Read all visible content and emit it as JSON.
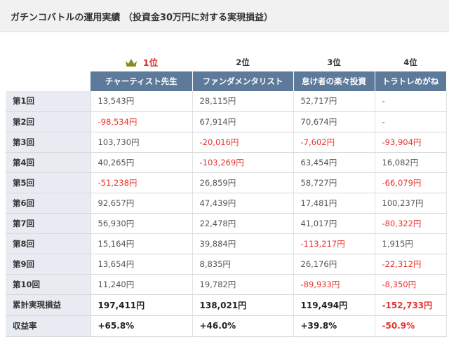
{
  "title": "ガチンコバトルの運用実績 （投資金30万円に対する実現損益）",
  "ranks": [
    "1位",
    "2位",
    "3位",
    "4位"
  ],
  "traders": [
    "チャーティスト先生",
    "ファンダメンタリスト",
    "怠け者の楽々投資",
    "トラトレめがね"
  ],
  "colors": {
    "header_bg": "#5d7a9b",
    "label_bg": "#e8ecf2",
    "negative": "#e8322f",
    "crown": "#8a8a1f"
  },
  "rows": [
    {
      "label": "第1回",
      "values": [
        "13,543円",
        "28,115円",
        "52,717円",
        "-"
      ]
    },
    {
      "label": "第2回",
      "values": [
        "-98,534円",
        "67,914円",
        "70,674円",
        "-"
      ]
    },
    {
      "label": "第3回",
      "values": [
        "103,730円",
        "-20,016円",
        "-7,602円",
        "-93,904円"
      ]
    },
    {
      "label": "第4回",
      "values": [
        "40,265円",
        "-103,269円",
        "63,454円",
        "16,082円"
      ]
    },
    {
      "label": "第5回",
      "values": [
        "-51,238円",
        "26,859円",
        "58,727円",
        "-66,079円"
      ]
    },
    {
      "label": "第6回",
      "values": [
        "92,657円",
        "47,439円",
        "17,481円",
        "100,237円"
      ]
    },
    {
      "label": "第7回",
      "values": [
        "56,930円",
        "22,478円",
        "41,017円",
        "-80,322円"
      ]
    },
    {
      "label": "第8回",
      "values": [
        "15,164円",
        "39,884円",
        "-113,217円",
        "1,915円"
      ]
    },
    {
      "label": "第9回",
      "values": [
        "13,654円",
        "8,835円",
        "26,176円",
        "-22,312円"
      ]
    },
    {
      "label": "第10回",
      "values": [
        "11,240円",
        "19,782円",
        "-89,933円",
        "-8,350円"
      ]
    }
  ],
  "totals": [
    {
      "label": "累計実現損益",
      "values": [
        "197,411円",
        "138,021円",
        "119,494円",
        "-152,733円"
      ]
    },
    {
      "label": "収益率",
      "values": [
        "+65.8%",
        "+46.0%",
        "+39.8%",
        "-50.9%"
      ]
    }
  ]
}
